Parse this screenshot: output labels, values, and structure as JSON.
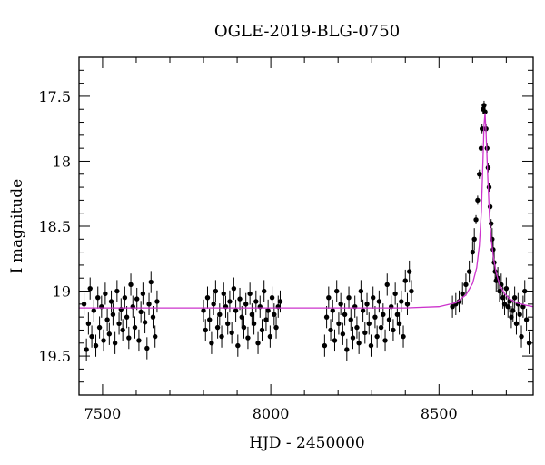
{
  "chart_data": {
    "type": "scatter",
    "title": "OGLE-2019-BLG-0750",
    "xlabel": "HJD - 2450000",
    "ylabel": "I magnitude",
    "xlim": [
      7430,
      8780
    ],
    "ylim": [
      19.8,
      17.2
    ],
    "y_inverted": true,
    "x_ticks": [
      7500,
      8000,
      8500
    ],
    "x_tick_labels": [
      "7500",
      "8000",
      "8500"
    ],
    "y_ticks": [
      17.5,
      18,
      18.5,
      19,
      19.5
    ],
    "y_tick_labels": [
      "17.5",
      "18",
      "18.5",
      "19",
      "19.5"
    ],
    "grid": false,
    "colors": {
      "points": "#000000",
      "model": "#cc33cc"
    },
    "series": [
      {
        "kind": "observations",
        "x": [
          7445,
          7452,
          7458,
          7463,
          7468,
          7474,
          7480,
          7486,
          7491,
          7497,
          7503,
          7508,
          7514,
          7520,
          7526,
          7531,
          7537,
          7543,
          7549,
          7555,
          7560,
          7566,
          7572,
          7578,
          7584,
          7590,
          7596,
          7602,
          7608,
          7614,
          7620,
          7626,
          7632,
          7638,
          7644,
          7650,
          7656,
          7662,
          7800,
          7806,
          7812,
          7818,
          7824,
          7830,
          7836,
          7842,
          7848,
          7854,
          7860,
          7866,
          7872,
          7878,
          7884,
          7890,
          7896,
          7902,
          7908,
          7914,
          7920,
          7926,
          7932,
          7938,
          7944,
          7950,
          7956,
          7962,
          7968,
          7974,
          7980,
          7986,
          7992,
          7998,
          8004,
          8010,
          8016,
          8022,
          8028,
          8160,
          8166,
          8172,
          8178,
          8184,
          8190,
          8196,
          8202,
          8208,
          8214,
          8220,
          8226,
          8232,
          8238,
          8244,
          8250,
          8256,
          8262,
          8268,
          8274,
          8280,
          8286,
          8292,
          8298,
          8304,
          8310,
          8316,
          8322,
          8328,
          8334,
          8340,
          8346,
          8352,
          8358,
          8364,
          8370,
          8376,
          8382,
          8388,
          8394,
          8400,
          8406,
          8412,
          8418,
          8540,
          8550,
          8560,
          8570,
          8580,
          8590,
          8600,
          8605,
          8610,
          8615,
          8620,
          8625,
          8628,
          8631,
          8634,
          8637,
          8640,
          8643,
          8646,
          8649,
          8652,
          8655,
          8658,
          8661,
          8664,
          8667,
          8670,
          8675,
          8680,
          8685,
          8690,
          8695,
          8700,
          8705,
          8710,
          8715,
          8720,
          8725,
          8730,
          8735,
          8740,
          8745,
          8750,
          8755,
          8760,
          8768
        ],
        "y": [
          19.1,
          19.45,
          19.25,
          18.98,
          19.35,
          19.15,
          19.42,
          19.05,
          19.28,
          19.12,
          19.38,
          19.02,
          19.22,
          19.33,
          19.08,
          19.18,
          19.4,
          19.0,
          19.25,
          19.14,
          19.3,
          19.05,
          19.2,
          19.36,
          18.95,
          19.12,
          19.28,
          19.06,
          19.38,
          19.16,
          19.02,
          19.24,
          19.44,
          19.1,
          18.93,
          19.2,
          19.35,
          19.08,
          19.15,
          19.3,
          19.05,
          19.22,
          19.4,
          19.1,
          19.0,
          19.28,
          19.18,
          19.35,
          19.02,
          19.12,
          19.25,
          19.08,
          19.32,
          18.98,
          19.15,
          19.42,
          19.06,
          19.2,
          19.28,
          19.1,
          19.36,
          19.02,
          19.18,
          19.25,
          19.08,
          19.4,
          19.12,
          19.3,
          19.0,
          19.22,
          19.15,
          19.35,
          19.05,
          19.18,
          19.28,
          19.12,
          19.08,
          19.42,
          19.2,
          19.05,
          19.3,
          19.15,
          19.38,
          19.0,
          19.25,
          19.1,
          19.33,
          19.18,
          19.45,
          19.05,
          19.22,
          19.36,
          19.12,
          19.28,
          19.4,
          19.0,
          19.15,
          19.32,
          19.1,
          19.25,
          19.42,
          19.05,
          19.2,
          19.35,
          19.08,
          19.28,
          19.18,
          19.38,
          18.95,
          19.22,
          19.12,
          19.3,
          19.02,
          19.18,
          19.25,
          19.08,
          19.35,
          18.92,
          19.1,
          18.85,
          19.0,
          19.12,
          19.1,
          19.08,
          19.02,
          18.95,
          18.85,
          18.7,
          18.6,
          18.45,
          18.3,
          18.1,
          17.9,
          17.75,
          17.6,
          17.57,
          17.62,
          17.75,
          17.9,
          18.05,
          18.2,
          18.35,
          18.48,
          18.6,
          18.68,
          18.78,
          18.85,
          18.92,
          18.9,
          19.0,
          18.95,
          19.05,
          19.1,
          18.98,
          19.12,
          19.08,
          19.2,
          19.15,
          19.05,
          19.25,
          19.1,
          19.18,
          19.35,
          19.12,
          19.0,
          19.22,
          19.4
        ]
      },
      {
        "kind": "model",
        "x": [
          7430,
          8400,
          8500,
          8550,
          8580,
          8600,
          8612,
          8620,
          8626,
          8631,
          8634,
          8637,
          8640,
          8645,
          8650,
          8656,
          8663,
          8670,
          8680,
          8695,
          8710,
          8730,
          8760,
          8780
        ],
        "y": [
          19.13,
          19.13,
          19.12,
          19.09,
          19.03,
          18.94,
          18.82,
          18.65,
          18.38,
          17.98,
          17.72,
          17.63,
          17.78,
          18.12,
          18.42,
          18.62,
          18.76,
          18.86,
          18.95,
          19.02,
          19.06,
          19.09,
          19.11,
          19.12
        ]
      }
    ]
  }
}
